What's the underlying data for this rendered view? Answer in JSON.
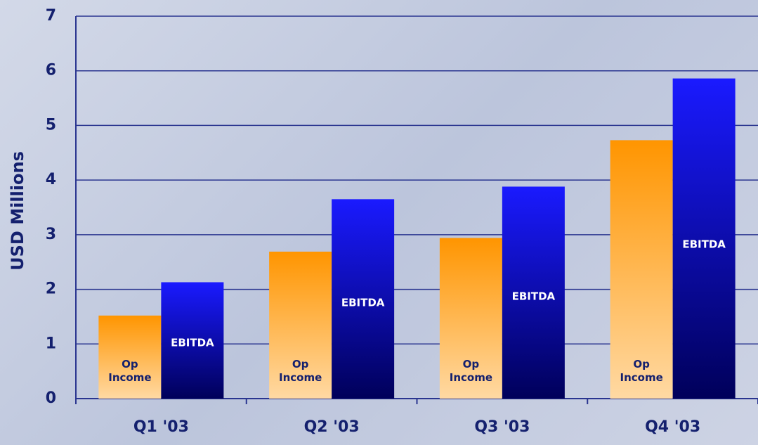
{
  "chart_data": {
    "type": "bar",
    "y_label": "USD Millions",
    "categories": [
      "Q1 '03",
      "Q2 '03",
      "Q3 '03",
      "Q4 '03"
    ],
    "series": [
      {
        "name": "Op Income",
        "color": "#ff9a10",
        "values": [
          1.52,
          2.69,
          2.94,
          4.73
        ]
      },
      {
        "name": "EBITDA",
        "color": "#1010ff",
        "values": [
          2.13,
          3.65,
          3.88,
          5.86
        ]
      }
    ],
    "ylim": [
      0,
      7
    ],
    "yticks": [
      0,
      1,
      2,
      3,
      4,
      5,
      6,
      7
    ],
    "grid": true
  }
}
